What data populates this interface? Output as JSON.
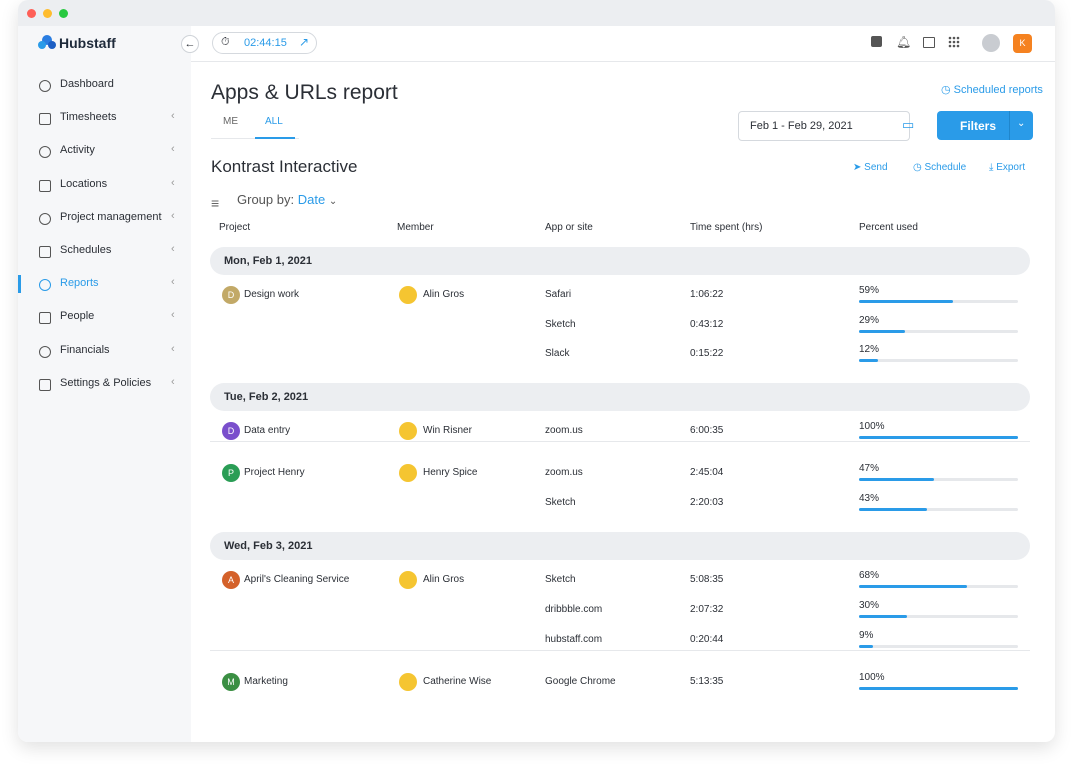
{
  "app": {
    "brand": "Hubstaff",
    "timer": "02:44:15",
    "user_initial": "K"
  },
  "sidebar": {
    "items": [
      "Dashboard",
      "Timesheets",
      "Activity",
      "Locations",
      "Project management",
      "Schedules",
      "Reports",
      "People",
      "Financials",
      "Settings & Policies"
    ],
    "active": 6
  },
  "page": {
    "title": "Apps & URLs report",
    "scheduled": "Scheduled reports",
    "tabs": [
      "ME",
      "ALL"
    ],
    "active_tab": 1,
    "date_range": "Feb 1 -  Feb 29, 2021",
    "filters": "Filters",
    "org": "Kontrast Interactive",
    "actions": [
      "Send",
      "Schedule",
      "Export"
    ],
    "group_by_label": "Group by:",
    "group_by_value": "Date"
  },
  "table": {
    "columns": [
      "Project",
      "Member",
      "App or site",
      "Time spent (hrs)",
      "Percent used"
    ],
    "groups": [
      {
        "date": "Mon, Feb 1, 2021",
        "entries": [
          {
            "project": "Design work",
            "initial": "D",
            "color": "#c2a967",
            "member": "Alin Gros",
            "apps": [
              {
                "app": "Safari",
                "time": "1:06:22",
                "percent": {
                  "value": 59,
                  "label": "59%"
                }
              },
              {
                "app": "Sketch",
                "time": "0:43:12",
                "percent": {
                  "value": 29,
                  "label": "29%"
                }
              },
              {
                "app": "Slack",
                "time": "0:15:22",
                "percent": {
                  "value": 12,
                  "label": "12%"
                }
              }
            ]
          }
        ]
      },
      {
        "date": "Tue, Feb 2, 2021",
        "entries": [
          {
            "project": "Data entry",
            "initial": "D",
            "color": "#7a4fcc",
            "member": "Win Risner",
            "apps": [
              {
                "app": "zoom.us",
                "time": "6:00:35",
                "percent": {
                  "value": 100,
                  "label": "100%"
                }
              }
            ]
          },
          {
            "project": "Project Henry",
            "initial": "P",
            "color": "#2a9d55",
            "member": "Henry Spice",
            "apps": [
              {
                "app": "zoom.us",
                "time": "2:45:04",
                "percent": {
                  "value": 47,
                  "label": "47%"
                }
              },
              {
                "app": "Sketch",
                "time": "2:20:03",
                "percent": {
                  "value": 43,
                  "label": "43%"
                }
              }
            ]
          }
        ]
      },
      {
        "date": "Wed, Feb 3, 2021",
        "entries": [
          {
            "project": "April's Cleaning Service",
            "initial": "A",
            "color": "#d4612a",
            "member": "Alin Gros",
            "apps": [
              {
                "app": "Sketch",
                "time": "5:08:35",
                "percent": {
                  "value": 68,
                  "label": "68%"
                }
              },
              {
                "app": "dribbble.com",
                "time": "2:07:32",
                "percent": {
                  "value": 30,
                  "label": "30%"
                }
              },
              {
                "app": "hubstaff.com",
                "time": "0:20:44",
                "percent": {
                  "value": 9,
                  "label": "9%"
                }
              }
            ]
          },
          {
            "project": "Marketing",
            "initial": "M",
            "color": "#3b8f43",
            "member": "Catherine Wise",
            "apps": [
              {
                "app": "Google Chrome",
                "time": "5:13:35",
                "percent": {
                  "value": 100,
                  "label": "100%"
                }
              }
            ]
          }
        ]
      }
    ]
  }
}
